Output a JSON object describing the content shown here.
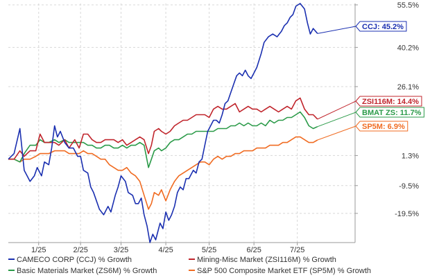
{
  "chart_data": {
    "type": "line",
    "title": "",
    "xlabel": "",
    "ylabel": "",
    "grid": true,
    "legend_position": "bottom",
    "x_ticks": [
      "1/25",
      "2/25",
      "3/25",
      "4/25",
      "5/25",
      "6/25",
      "7/25"
    ],
    "x_tick_positions": [
      1,
      30,
      58,
      89,
      119,
      150,
      180
    ],
    "x_range": [
      -20,
      220
    ],
    "y_ticks": [
      {
        "value": 55.5,
        "label": "55.5%"
      },
      {
        "value": 40.2,
        "label": "40.2%"
      },
      {
        "value": 26.1,
        "label": "26.1%"
      },
      {
        "value": 1.3,
        "label": "1.3%"
      },
      {
        "value": -9.5,
        "label": "-9.5%"
      },
      {
        "value": -19.5,
        "label": "-19.5%"
      }
    ],
    "y_range": [
      -30,
      56
    ],
    "series": [
      {
        "name": "CAMECO CORP (CCJ) % Growth",
        "color": "#1a2fb0",
        "tag": "CCJ: 45.2%",
        "points": [
          [
            -20,
            0
          ],
          [
            -16,
            2
          ],
          [
            -12,
            11
          ],
          [
            -9,
            -4
          ],
          [
            -5,
            -8
          ],
          [
            -2,
            -6
          ],
          [
            0,
            -3
          ],
          [
            3,
            -6
          ],
          [
            5,
            -1
          ],
          [
            8,
            -2
          ],
          [
            10,
            4
          ],
          [
            12,
            12
          ],
          [
            14,
            8
          ],
          [
            16,
            10
          ],
          [
            19,
            6
          ],
          [
            22,
            4
          ],
          [
            25,
            4
          ],
          [
            28,
            1
          ],
          [
            30,
            1
          ],
          [
            32,
            -4
          ],
          [
            35,
            -5
          ],
          [
            37,
            -10
          ],
          [
            39,
            -12
          ],
          [
            41,
            -15
          ],
          [
            43,
            -18
          ],
          [
            46,
            -20
          ],
          [
            49,
            -17
          ],
          [
            51,
            -19
          ],
          [
            54,
            -13
          ],
          [
            56,
            -10
          ],
          [
            58,
            -6
          ],
          [
            61,
            -8
          ],
          [
            63,
            -12
          ],
          [
            66,
            -13
          ],
          [
            68,
            -16
          ],
          [
            70,
            -16
          ],
          [
            72,
            -14
          ],
          [
            74,
            -20
          ],
          [
            76,
            -24
          ],
          [
            78,
            -30
          ],
          [
            80,
            -27
          ],
          [
            82,
            -29
          ],
          [
            85,
            -23
          ],
          [
            87,
            -25
          ],
          [
            89,
            -19
          ],
          [
            91,
            -22
          ],
          [
            93,
            -20
          ],
          [
            95,
            -17
          ],
          [
            97,
            -12
          ],
          [
            99,
            -10
          ],
          [
            101,
            -11
          ],
          [
            103,
            -7
          ],
          [
            105,
            -7
          ],
          [
            108,
            -4
          ],
          [
            110,
            -5
          ],
          [
            112,
            -1
          ],
          [
            114,
            0
          ],
          [
            116,
            5
          ],
          [
            118,
            10
          ],
          [
            120,
            12
          ],
          [
            122,
            14
          ],
          [
            124,
            14
          ],
          [
            126,
            13
          ],
          [
            128,
            16
          ],
          [
            130,
            20
          ],
          [
            132,
            21
          ],
          [
            134,
            24
          ],
          [
            136,
            27
          ],
          [
            138,
            30
          ],
          [
            140,
            31
          ],
          [
            142,
            30
          ],
          [
            144,
            32
          ],
          [
            146,
            30
          ],
          [
            148,
            29
          ],
          [
            150,
            31
          ],
          [
            152,
            33
          ],
          [
            155,
            38
          ],
          [
            157,
            42
          ],
          [
            160,
            44
          ],
          [
            163,
            45
          ],
          [
            166,
            44
          ],
          [
            169,
            46
          ],
          [
            171,
            48
          ],
          [
            173,
            49
          ],
          [
            175,
            51
          ],
          [
            177,
            52
          ],
          [
            179,
            55
          ],
          [
            182,
            56
          ],
          [
            185,
            54
          ],
          [
            187,
            49
          ],
          [
            189,
            45
          ],
          [
            191,
            47
          ],
          [
            194,
            45.2
          ]
        ]
      },
      {
        "name": "Mining-Misc Market (ZSI116M) % Growth",
        "color": "#c0242b",
        "tag": "ZSI116M: 14.4%",
        "points": [
          [
            -20,
            0
          ],
          [
            -16,
            0
          ],
          [
            -12,
            3
          ],
          [
            -9,
            1
          ],
          [
            -5,
            3
          ],
          [
            -1,
            3
          ],
          [
            2,
            9
          ],
          [
            5,
            6
          ],
          [
            8,
            6
          ],
          [
            12,
            6
          ],
          [
            15,
            5
          ],
          [
            19,
            7
          ],
          [
            22,
            4
          ],
          [
            26,
            7
          ],
          [
            29,
            4
          ],
          [
            32,
            9
          ],
          [
            35,
            9
          ],
          [
            38,
            7
          ],
          [
            41,
            6
          ],
          [
            44,
            6
          ],
          [
            47,
            7
          ],
          [
            50,
            7
          ],
          [
            53,
            7
          ],
          [
            56,
            6
          ],
          [
            59,
            7
          ],
          [
            62,
            5
          ],
          [
            65,
            6
          ],
          [
            68,
            7
          ],
          [
            71,
            8
          ],
          [
            74,
            7
          ],
          [
            77,
            2
          ],
          [
            79,
            5
          ],
          [
            81,
            10
          ],
          [
            84,
            11
          ],
          [
            86,
            10
          ],
          [
            89,
            9
          ],
          [
            92,
            10
          ],
          [
            95,
            12
          ],
          [
            98,
            13
          ],
          [
            101,
            14
          ],
          [
            104,
            14
          ],
          [
            107,
            15
          ],
          [
            110,
            16
          ],
          [
            113,
            16
          ],
          [
            116,
            16
          ],
          [
            119,
            15
          ],
          [
            122,
            18
          ],
          [
            125,
            19
          ],
          [
            128,
            18
          ],
          [
            131,
            18
          ],
          [
            134,
            19
          ],
          [
            137,
            20
          ],
          [
            140,
            17
          ],
          [
            143,
            18
          ],
          [
            146,
            19
          ],
          [
            149,
            18
          ],
          [
            152,
            18
          ],
          [
            155,
            17
          ],
          [
            158,
            18
          ],
          [
            161,
            19
          ],
          [
            164,
            18
          ],
          [
            167,
            17
          ],
          [
            170,
            18
          ],
          [
            173,
            19
          ],
          [
            176,
            18
          ],
          [
            179,
            21
          ],
          [
            182,
            22
          ],
          [
            185,
            18
          ],
          [
            188,
            16
          ],
          [
            191,
            16
          ],
          [
            194,
            14.4
          ]
        ]
      },
      {
        "name": "Basic Materials Market (ZS6M) % Growth",
        "color": "#2a9a48",
        "tag": "BMAT ZS: 11.7%",
        "points": [
          [
            -20,
            0
          ],
          [
            -16,
            0
          ],
          [
            -12,
            -1
          ],
          [
            -9,
            2
          ],
          [
            -5,
            5
          ],
          [
            -1,
            5
          ],
          [
            2,
            7
          ],
          [
            5,
            6
          ],
          [
            8,
            6
          ],
          [
            12,
            7
          ],
          [
            15,
            6
          ],
          [
            19,
            7
          ],
          [
            22,
            6
          ],
          [
            26,
            6
          ],
          [
            29,
            6
          ],
          [
            32,
            6
          ],
          [
            35,
            5
          ],
          [
            38,
            5
          ],
          [
            41,
            4
          ],
          [
            44,
            4
          ],
          [
            47,
            5
          ],
          [
            50,
            5
          ],
          [
            53,
            4
          ],
          [
            56,
            4
          ],
          [
            59,
            5
          ],
          [
            62,
            4
          ],
          [
            65,
            5
          ],
          [
            68,
            5
          ],
          [
            71,
            6
          ],
          [
            74,
            5
          ],
          [
            77,
            -3
          ],
          [
            79,
            0
          ],
          [
            81,
            3
          ],
          [
            84,
            4
          ],
          [
            86,
            3
          ],
          [
            89,
            4
          ],
          [
            92,
            6
          ],
          [
            95,
            7
          ],
          [
            98,
            7
          ],
          [
            101,
            8
          ],
          [
            104,
            9
          ],
          [
            107,
            9
          ],
          [
            110,
            10
          ],
          [
            113,
            10
          ],
          [
            116,
            10
          ],
          [
            119,
            10
          ],
          [
            122,
            10
          ],
          [
            125,
            11
          ],
          [
            128,
            11
          ],
          [
            131,
            11
          ],
          [
            134,
            12
          ],
          [
            137,
            12
          ],
          [
            140,
            13
          ],
          [
            143,
            12
          ],
          [
            146,
            13
          ],
          [
            149,
            12
          ],
          [
            152,
            12
          ],
          [
            155,
            13
          ],
          [
            158,
            12
          ],
          [
            161,
            14
          ],
          [
            164,
            13
          ],
          [
            167,
            14
          ],
          [
            170,
            14
          ],
          [
            173,
            15
          ],
          [
            176,
            15
          ],
          [
            179,
            16
          ],
          [
            182,
            17
          ],
          [
            185,
            15
          ],
          [
            188,
            12
          ],
          [
            191,
            11
          ],
          [
            194,
            11.7
          ]
        ]
      },
      {
        "name": "S&P 500 Composite Market ETF (SP5M) % Growth",
        "color": "#f06b21",
        "tag": "SP5M: 6.9%",
        "points": [
          [
            -20,
            0
          ],
          [
            -16,
            0
          ],
          [
            -12,
            -1
          ],
          [
            -9,
            0
          ],
          [
            -5,
            0
          ],
          [
            -1,
            1
          ],
          [
            2,
            2
          ],
          [
            5,
            2
          ],
          [
            8,
            2
          ],
          [
            12,
            3
          ],
          [
            15,
            3
          ],
          [
            19,
            3
          ],
          [
            22,
            2
          ],
          [
            26,
            2
          ],
          [
            29,
            2
          ],
          [
            32,
            3
          ],
          [
            35,
            2
          ],
          [
            38,
            2
          ],
          [
            41,
            1
          ],
          [
            44,
            0
          ],
          [
            47,
            0
          ],
          [
            50,
            -2
          ],
          [
            53,
            -3
          ],
          [
            56,
            -4
          ],
          [
            59,
            -4
          ],
          [
            62,
            -3
          ],
          [
            65,
            -5
          ],
          [
            68,
            -6
          ],
          [
            71,
            -8
          ],
          [
            74,
            -13
          ],
          [
            77,
            -18
          ],
          [
            79,
            -16
          ],
          [
            81,
            -12
          ],
          [
            84,
            -13
          ],
          [
            86,
            -11
          ],
          [
            89,
            -15
          ],
          [
            92,
            -11
          ],
          [
            95,
            -8
          ],
          [
            98,
            -6
          ],
          [
            101,
            -5
          ],
          [
            104,
            -4
          ],
          [
            107,
            -3
          ],
          [
            110,
            -2
          ],
          [
            113,
            -1
          ],
          [
            116,
            -1
          ],
          [
            119,
            -2
          ],
          [
            122,
            0
          ],
          [
            125,
            1
          ],
          [
            128,
            0
          ],
          [
            131,
            1
          ],
          [
            134,
            1
          ],
          [
            137,
            2
          ],
          [
            140,
            2
          ],
          [
            143,
            3
          ],
          [
            146,
            3
          ],
          [
            149,
            3
          ],
          [
            152,
            4
          ],
          [
            155,
            4
          ],
          [
            158,
            4
          ],
          [
            161,
            5
          ],
          [
            164,
            5
          ],
          [
            167,
            5
          ],
          [
            170,
            6
          ],
          [
            173,
            6
          ],
          [
            176,
            7
          ],
          [
            179,
            8
          ],
          [
            182,
            8
          ],
          [
            185,
            7
          ],
          [
            188,
            6
          ],
          [
            191,
            6
          ],
          [
            194,
            6.9
          ]
        ]
      }
    ]
  }
}
